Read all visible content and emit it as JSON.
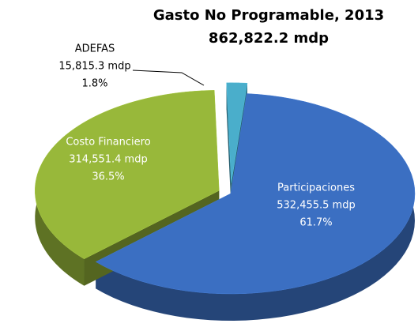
{
  "chart_data": {
    "type": "pie",
    "title": "Gasto No Programable, 2013",
    "subtitle": "862,822.2 mdp",
    "categories": [
      "Participaciones",
      "Costo Financiero",
      "ADEFAS"
    ],
    "values": [
      61.7,
      36.5,
      1.8
    ],
    "value_labels": [
      "61.7%",
      "36.5%",
      "1.8%"
    ],
    "amounts": [
      532455.5,
      314551.4,
      15815.3
    ],
    "amount_labels": [
      "532,455.5 mdp",
      "314,551.4 mdp",
      "15,815.3 mdp"
    ],
    "colors": [
      "#3b6fc2",
      "#98b83a",
      "#4aaecb"
    ]
  }
}
